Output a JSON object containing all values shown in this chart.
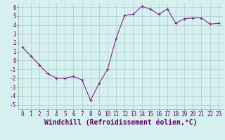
{
  "x": [
    0,
    1,
    2,
    3,
    4,
    5,
    6,
    7,
    8,
    9,
    10,
    11,
    12,
    13,
    14,
    15,
    16,
    17,
    18,
    19,
    20,
    21,
    22,
    23
  ],
  "y": [
    1.5,
    0.5,
    -0.5,
    -1.5,
    -2.0,
    -2.0,
    -1.8,
    -2.2,
    -4.5,
    -2.6,
    -1.0,
    2.5,
    5.1,
    5.2,
    6.1,
    5.8,
    5.2,
    5.8,
    4.2,
    4.7,
    4.8,
    4.8,
    4.1,
    4.2
  ],
  "line_color": "#882288",
  "marker_color": "#882288",
  "bg_color": "#d6f0f0",
  "grid_color": "#aacccc",
  "xlabel": "Windchill (Refroidissement éolien,°C)",
  "xlim": [
    -0.5,
    23.5
  ],
  "ylim": [
    -5.5,
    6.5
  ],
  "yticks": [
    -5,
    -4,
    -3,
    -2,
    -1,
    0,
    1,
    2,
    3,
    4,
    5,
    6
  ],
  "xticks": [
    0,
    1,
    2,
    3,
    4,
    5,
    6,
    7,
    8,
    9,
    10,
    11,
    12,
    13,
    14,
    15,
    16,
    17,
    18,
    19,
    20,
    21,
    22,
    23
  ],
  "tick_fontsize": 5.5,
  "xlabel_fontsize": 7.0
}
